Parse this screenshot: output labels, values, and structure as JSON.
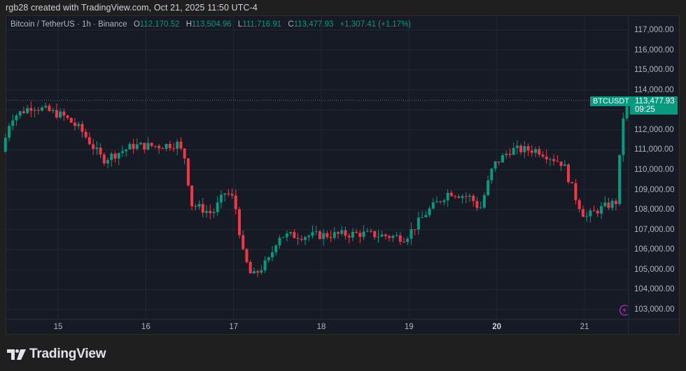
{
  "header": {
    "credit": "rgb28 created with TradingView.com, Oct 21, 2025 11:50 UTC-4"
  },
  "legend": {
    "symbol": "Bitcoin / TetherUS · 1h · Binance",
    "o_label": "O",
    "o_value": "112,170.52",
    "h_label": "H",
    "h_value": "113,504.96",
    "l_label": "L",
    "l_value": "111,716.91",
    "c_label": "C",
    "c_value": "113,477.93",
    "change": "+1,307.41 (+1.17%)"
  },
  "price_tag": {
    "symbol": "BTCUSDT",
    "price": "113,477.93",
    "countdown": "09:25"
  },
  "logo": {
    "text": "TradingView"
  },
  "colors": {
    "up": "#089981",
    "down": "#f23645",
    "background": "#161a25",
    "grid": "#242833",
    "axis_text": "#b2b5be",
    "bolt": "#9c27b0"
  },
  "chart_data": {
    "type": "candlestick",
    "title": "Bitcoin / TetherUS · 1h · Binance",
    "xlabel": "",
    "ylabel": "",
    "x_ticks": [
      "15",
      "16",
      "17",
      "18",
      "19",
      "20",
      "21"
    ],
    "y_ticks": [
      "117,000.00",
      "116,000.00",
      "115,000.00",
      "114,000.00",
      "112,000.00",
      "111,000.00",
      "110,000.00",
      "109,000.00",
      "108,000.00",
      "107,000.00",
      "106,000.00",
      "105,000.00",
      "104,000.00",
      "103,000.00"
    ],
    "ylim": [
      102500,
      117500
    ],
    "grid": true,
    "last_price": 113477.93,
    "waypoints": [
      {
        "day": 14.4,
        "price": 110900
      },
      {
        "day": 14.5,
        "price": 112600
      },
      {
        "day": 14.75,
        "price": 113200
      },
      {
        "day": 15.1,
        "price": 112700
      },
      {
        "day": 15.3,
        "price": 112000
      },
      {
        "day": 15.55,
        "price": 110500
      },
      {
        "day": 15.9,
        "price": 111200
      },
      {
        "day": 16.2,
        "price": 111200
      },
      {
        "day": 16.4,
        "price": 111300
      },
      {
        "day": 16.5,
        "price": 110500
      },
      {
        "day": 16.55,
        "price": 108300
      },
      {
        "day": 16.8,
        "price": 107800
      },
      {
        "day": 16.95,
        "price": 108900
      },
      {
        "day": 17.05,
        "price": 108500
      },
      {
        "day": 17.15,
        "price": 105800
      },
      {
        "day": 17.25,
        "price": 104600
      },
      {
        "day": 17.45,
        "price": 105500
      },
      {
        "day": 17.55,
        "price": 106700
      },
      {
        "day": 17.9,
        "price": 106700
      },
      {
        "day": 18.5,
        "price": 106800
      },
      {
        "day": 19.0,
        "price": 106600
      },
      {
        "day": 19.25,
        "price": 107900
      },
      {
        "day": 19.5,
        "price": 108900
      },
      {
        "day": 19.75,
        "price": 108600
      },
      {
        "day": 19.85,
        "price": 108000
      },
      {
        "day": 20.0,
        "price": 110200
      },
      {
        "day": 20.2,
        "price": 111000
      },
      {
        "day": 20.5,
        "price": 111000
      },
      {
        "day": 20.8,
        "price": 110300
      },
      {
        "day": 20.95,
        "price": 108500
      },
      {
        "day": 21.05,
        "price": 107600
      },
      {
        "day": 21.2,
        "price": 108000
      },
      {
        "day": 21.4,
        "price": 108400
      },
      {
        "day": 21.47,
        "price": 112000
      },
      {
        "day": 21.5,
        "price": 113478
      }
    ]
  }
}
